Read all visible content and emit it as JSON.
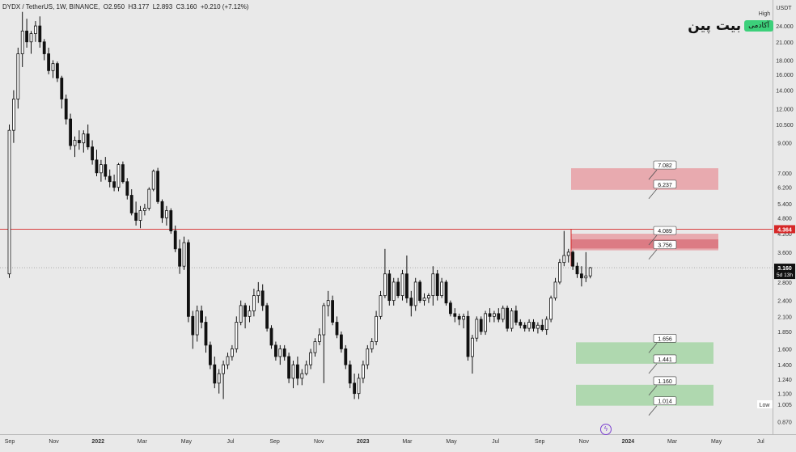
{
  "header": {
    "symbol": "DYDX / TetherUS, 1W, BINANCE",
    "ohlc": "O2.950  H3.177  L2.893  C3.160  +0.210 (+7.12%)"
  },
  "logo": {
    "brand": "بیت پین",
    "badge": "آکادمی"
  },
  "price_axis": {
    "currency": "USDT",
    "high_label": "High",
    "low_label": "Low",
    "low_value": "1.005",
    "current_price": "3.160",
    "countdown": "5d 13h",
    "resistance_price": "4.364",
    "ticks": [
      "24.000",
      "21.000",
      "18.000",
      "16.000",
      "14.000",
      "12.000",
      "10.500",
      "9.000",
      "7.000",
      "6.200",
      "5.400",
      "4.800",
      "4.200",
      "3.600",
      "2.800",
      "2.400",
      "2.100",
      "1.850",
      "1.600",
      "1.400",
      "1.240",
      "1.100",
      "0.870"
    ]
  },
  "time_axis": {
    "labels": [
      "Sep",
      "Nov",
      "2022",
      "Mar",
      "May",
      "Jul",
      "Sep",
      "Nov",
      "2023",
      "Mar",
      "May",
      "Jul",
      "Sep",
      "Nov",
      "2024",
      "Mar",
      "May",
      "Jul"
    ]
  },
  "colors": {
    "background": "#e9e9e9",
    "candle": "#111111",
    "resistance_zone": "#e8a3a9",
    "resistance_zone_dark": "#d9737c",
    "support_zone": "#a9d6a9",
    "resistance_line": "#d62828",
    "price_line": "#888888"
  },
  "chart_data": {
    "type": "candlestick",
    "title": "DYDX / TetherUS, 1W, BINANCE",
    "y_scale": "log",
    "ylim": [
      0.82,
      27.5
    ],
    "x_ticks": [
      "Sep",
      "Nov",
      "2022",
      "Mar",
      "May",
      "Jul",
      "Sep",
      "Nov",
      "2023",
      "Mar",
      "May",
      "Jul",
      "Sep",
      "Nov",
      "2024",
      "Mar",
      "May",
      "Jul"
    ],
    "zones": [
      {
        "kind": "resistance",
        "top": 7.082,
        "bottom": 6.237,
        "labels": [
          "7.082",
          "6.237"
        ]
      },
      {
        "kind": "resistance",
        "top": 4.089,
        "bottom": 3.756,
        "labels": [
          "4.089",
          "3.756"
        ]
      },
      {
        "kind": "support",
        "top": 1.656,
        "bottom": 1.441,
        "labels": [
          "1.656",
          "1.441"
        ]
      },
      {
        "kind": "support",
        "top": 1.16,
        "bottom": 1.014,
        "labels": [
          "1.160",
          "1.014"
        ]
      }
    ],
    "horizontal_lines": [
      {
        "kind": "resistance",
        "value": 4.364
      },
      {
        "kind": "last_price",
        "value": 3.16
      }
    ],
    "candles": [
      [
        3.0,
        10.5,
        2.9,
        10.0
      ],
      [
        10.0,
        14.0,
        9.0,
        13.0
      ],
      [
        13.0,
        20.0,
        12.0,
        19.0
      ],
      [
        19.0,
        27.0,
        17.0,
        23.0
      ],
      [
        23.0,
        25.5,
        20.0,
        21.0
      ],
      [
        21.0,
        23.0,
        19.0,
        22.5
      ],
      [
        22.5,
        25.0,
        21.0,
        24.0
      ],
      [
        24.0,
        26.0,
        20.0,
        21.0
      ],
      [
        21.0,
        21.5,
        18.0,
        19.0
      ],
      [
        19.0,
        20.0,
        16.0,
        16.5
      ],
      [
        16.5,
        18.0,
        15.5,
        17.5
      ],
      [
        17.5,
        17.8,
        15.0,
        15.5
      ],
      [
        15.5,
        15.8,
        12.0,
        13.0
      ],
      [
        13.0,
        13.5,
        10.5,
        11.0
      ],
      [
        11.0,
        11.5,
        8.5,
        8.8
      ],
      [
        8.8,
        9.5,
        8.0,
        9.2
      ],
      [
        9.2,
        10.0,
        8.5,
        9.0
      ],
      [
        9.0,
        10.0,
        8.3,
        9.7
      ],
      [
        9.7,
        10.5,
        8.5,
        8.7
      ],
      [
        8.7,
        9.2,
        7.5,
        7.8
      ],
      [
        7.8,
        8.5,
        6.8,
        7.0
      ],
      [
        7.0,
        7.8,
        6.5,
        7.5
      ],
      [
        7.5,
        8.0,
        6.6,
        6.8
      ],
      [
        6.8,
        7.2,
        6.2,
        6.5
      ],
      [
        6.5,
        6.9,
        6.0,
        6.2
      ],
      [
        6.2,
        7.6,
        6.0,
        7.5
      ],
      [
        7.5,
        7.7,
        6.4,
        6.5
      ],
      [
        6.5,
        6.7,
        5.6,
        5.8
      ],
      [
        5.8,
        6.1,
        4.9,
        5.0
      ],
      [
        5.0,
        5.5,
        4.5,
        4.7
      ],
      [
        4.7,
        5.3,
        4.4,
        5.1
      ],
      [
        5.1,
        5.4,
        4.9,
        5.2
      ],
      [
        5.2,
        6.2,
        5.1,
        6.1
      ],
      [
        6.1,
        7.2,
        6.0,
        7.1
      ],
      [
        7.1,
        7.3,
        5.4,
        5.5
      ],
      [
        5.5,
        5.6,
        4.6,
        4.8
      ],
      [
        4.8,
        5.3,
        4.5,
        5.1
      ],
      [
        5.1,
        5.2,
        4.2,
        4.3
      ],
      [
        4.3,
        4.5,
        3.6,
        3.7
      ],
      [
        3.7,
        4.0,
        3.0,
        3.2
      ],
      [
        3.2,
        4.1,
        3.1,
        3.9
      ],
      [
        3.9,
        4.0,
        2.0,
        2.1
      ],
      [
        2.1,
        2.2,
        1.6,
        1.8
      ],
      [
        1.8,
        2.3,
        1.7,
        2.2
      ],
      [
        2.2,
        2.3,
        1.9,
        2.0
      ],
      [
        2.0,
        2.1,
        1.55,
        1.65
      ],
      [
        1.65,
        1.7,
        1.35,
        1.4
      ],
      [
        1.4,
        1.5,
        1.15,
        1.2
      ],
      [
        1.2,
        1.35,
        1.1,
        1.3
      ],
      [
        1.3,
        1.45,
        1.05,
        1.4
      ],
      [
        1.4,
        1.55,
        1.35,
        1.5
      ],
      [
        1.5,
        1.65,
        1.45,
        1.6
      ],
      [
        1.6,
        2.1,
        1.55,
        2.0
      ],
      [
        2.0,
        2.4,
        1.95,
        2.3
      ],
      [
        2.3,
        2.35,
        1.9,
        2.1
      ],
      [
        2.1,
        2.3,
        2.0,
        2.2
      ],
      [
        2.2,
        2.65,
        2.1,
        2.5
      ],
      [
        2.5,
        2.8,
        2.35,
        2.6
      ],
      [
        2.6,
        2.75,
        2.2,
        2.3
      ],
      [
        2.3,
        2.35,
        1.85,
        1.9
      ],
      [
        1.9,
        1.95,
        1.6,
        1.65
      ],
      [
        1.65,
        1.7,
        1.45,
        1.5
      ],
      [
        1.5,
        1.65,
        1.4,
        1.6
      ],
      [
        1.6,
        1.65,
        1.45,
        1.5
      ],
      [
        1.5,
        1.55,
        1.2,
        1.25
      ],
      [
        1.25,
        1.45,
        1.15,
        1.4
      ],
      [
        1.4,
        1.5,
        1.18,
        1.25
      ],
      [
        1.25,
        1.35,
        1.18,
        1.3
      ],
      [
        1.3,
        1.45,
        1.28,
        1.4
      ],
      [
        1.4,
        1.6,
        1.35,
        1.55
      ],
      [
        1.55,
        1.75,
        1.5,
        1.7
      ],
      [
        1.7,
        1.9,
        1.65,
        1.8
      ],
      [
        1.8,
        2.35,
        1.2,
        2.3
      ],
      [
        2.3,
        2.6,
        2.1,
        2.4
      ],
      [
        2.4,
        2.5,
        1.95,
        2.0
      ],
      [
        2.0,
        2.1,
        1.75,
        1.8
      ],
      [
        1.8,
        1.85,
        1.55,
        1.6
      ],
      [
        1.6,
        1.65,
        1.35,
        1.4
      ],
      [
        1.4,
        1.45,
        1.15,
        1.2
      ],
      [
        1.2,
        1.3,
        1.05,
        1.1
      ],
      [
        1.1,
        1.3,
        1.05,
        1.25
      ],
      [
        1.25,
        1.45,
        1.2,
        1.4
      ],
      [
        1.4,
        1.65,
        1.35,
        1.6
      ],
      [
        1.6,
        1.75,
        1.55,
        1.7
      ],
      [
        1.7,
        2.2,
        1.65,
        2.1
      ],
      [
        2.1,
        2.6,
        2.05,
        2.5
      ],
      [
        2.5,
        3.7,
        2.45,
        3.0
      ],
      [
        3.0,
        3.1,
        2.3,
        2.4
      ],
      [
        2.4,
        2.9,
        2.3,
        2.8
      ],
      [
        2.8,
        2.9,
        2.45,
        2.5
      ],
      [
        2.5,
        3.1,
        2.4,
        3.0
      ],
      [
        3.0,
        3.5,
        2.35,
        2.45
      ],
      [
        2.45,
        2.6,
        2.1,
        2.3
      ],
      [
        2.3,
        2.9,
        2.2,
        2.8
      ],
      [
        2.8,
        2.85,
        2.35,
        2.4
      ],
      [
        2.4,
        2.55,
        2.3,
        2.45
      ],
      [
        2.45,
        2.55,
        2.35,
        2.5
      ],
      [
        2.5,
        3.2,
        2.3,
        3.0
      ],
      [
        3.0,
        3.1,
        2.4,
        2.5
      ],
      [
        2.5,
        2.9,
        2.45,
        2.8
      ],
      [
        2.8,
        2.85,
        2.3,
        2.35
      ],
      [
        2.35,
        2.4,
        2.1,
        2.15
      ],
      [
        2.15,
        2.25,
        2.0,
        2.1
      ],
      [
        2.1,
        2.15,
        1.95,
        2.05
      ],
      [
        2.05,
        2.15,
        1.9,
        2.1
      ],
      [
        2.1,
        2.2,
        1.45,
        1.5
      ],
      [
        1.5,
        1.8,
        1.3,
        1.75
      ],
      [
        1.75,
        2.1,
        1.7,
        2.05
      ],
      [
        2.05,
        2.1,
        1.8,
        1.85
      ],
      [
        1.85,
        2.2,
        1.8,
        2.15
      ],
      [
        2.15,
        2.25,
        2.0,
        2.1
      ],
      [
        2.1,
        2.2,
        2.0,
        2.15
      ],
      [
        2.15,
        2.25,
        2.0,
        2.05
      ],
      [
        2.05,
        2.3,
        2.0,
        2.25
      ],
      [
        2.25,
        2.3,
        1.85,
        1.9
      ],
      [
        1.9,
        2.25,
        1.85,
        2.2
      ],
      [
        2.2,
        2.3,
        1.95,
        2.0
      ],
      [
        2.0,
        2.05,
        1.9,
        1.95
      ],
      [
        1.95,
        2.0,
        1.85,
        1.9
      ],
      [
        1.9,
        2.05,
        1.85,
        2.0
      ],
      [
        2.0,
        2.05,
        1.85,
        1.9
      ],
      [
        1.9,
        2.0,
        1.82,
        1.95
      ],
      [
        1.95,
        2.05,
        1.85,
        1.88
      ],
      [
        1.88,
        2.1,
        1.8,
        2.05
      ],
      [
        2.05,
        2.5,
        2.0,
        2.45
      ],
      [
        2.45,
        2.9,
        2.4,
        2.8
      ],
      [
        2.8,
        3.4,
        2.75,
        3.3
      ],
      [
        3.3,
        4.3,
        3.2,
        3.5
      ],
      [
        3.5,
        3.7,
        3.3,
        3.6
      ],
      [
        3.6,
        3.65,
        3.1,
        3.2
      ],
      [
        3.2,
        3.3,
        2.9,
        3.0
      ],
      [
        3.0,
        3.2,
        2.7,
        2.9
      ],
      [
        2.9,
        3.6,
        2.8,
        2.95
      ],
      [
        2.95,
        3.18,
        2.89,
        3.16
      ]
    ]
  }
}
